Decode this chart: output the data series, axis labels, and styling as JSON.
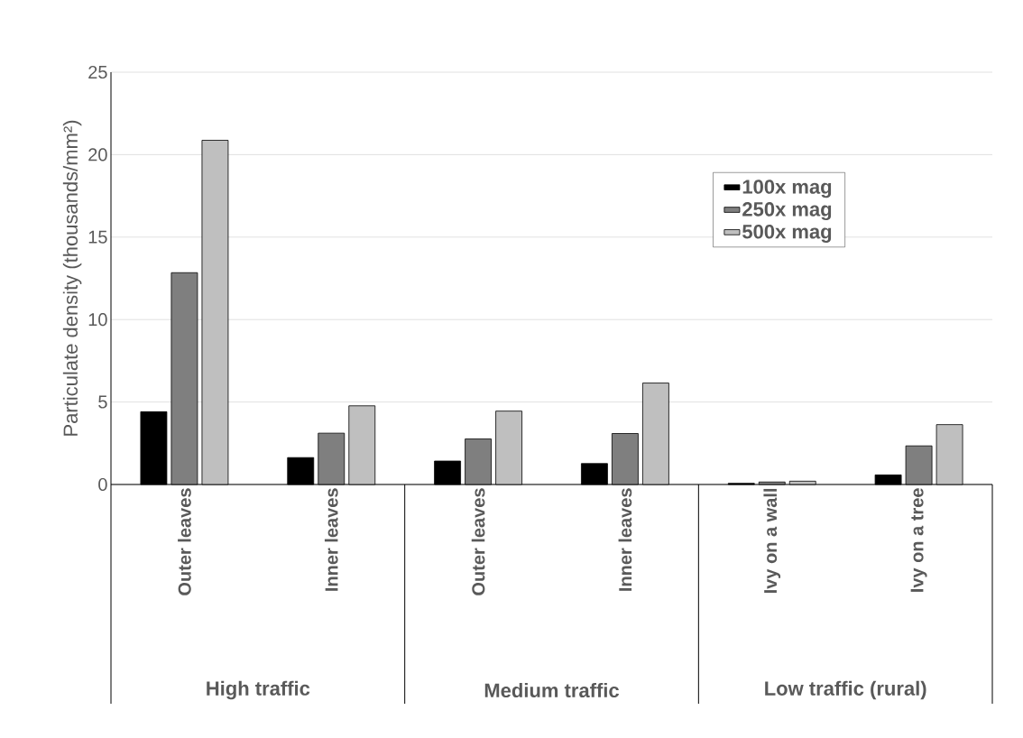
{
  "chart_data": {
    "type": "bar",
    "ylabel": "Particulate density (thousands/mm²)",
    "categories": [
      "Outer leaves",
      "Inner leaves",
      "Outer leaves",
      "Inner leaves",
      "Ivy on a wall",
      "Ivy on a tree"
    ],
    "series": [
      {
        "name": "100x mag",
        "color": "#000000",
        "values": [
          4.41,
          1.63,
          1.42,
          1.27,
          0.07,
          0.58
        ]
      },
      {
        "name": "250x mag",
        "color": "#7f7f7f",
        "values": [
          12.84,
          3.11,
          2.76,
          3.09,
          0.15,
          2.34
        ]
      },
      {
        "name": "500x mag",
        "color": "#bfbfbf",
        "values": [
          20.87,
          4.77,
          4.45,
          6.15,
          0.2,
          3.63
        ]
      }
    ],
    "annotations": [
      "High traffic",
      "Medium traffic",
      "Low traffic (rural)"
    ],
    "ylim": [
      0,
      25
    ],
    "yticks": [
      0,
      5,
      10,
      15,
      20,
      25
    ],
    "grid": "y",
    "legend": "top right"
  }
}
